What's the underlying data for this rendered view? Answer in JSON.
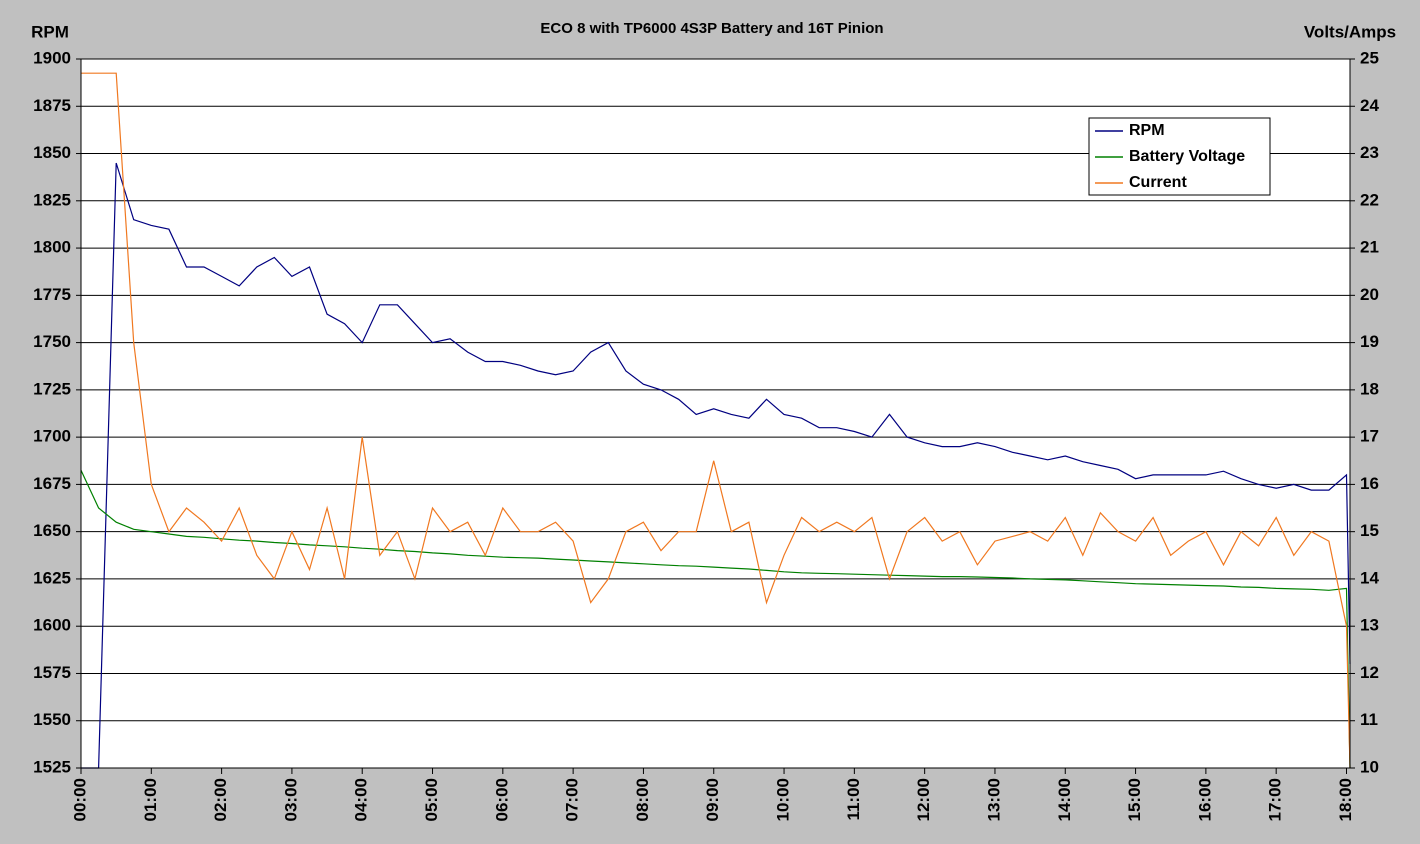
{
  "chart_data": {
    "type": "line",
    "title": "ECO 8 with TP6000 4S3P Battery and 16T Pinion",
    "ylabel": "RPM",
    "y2label": "Volts/Amps",
    "x": [
      0,
      0.25,
      0.5,
      0.75,
      1,
      1.25,
      1.5,
      1.75,
      2,
      2.25,
      2.5,
      2.75,
      3,
      3.25,
      3.5,
      3.75,
      4,
      4.25,
      4.5,
      4.75,
      5,
      5.25,
      5.5,
      5.75,
      6,
      6.25,
      6.5,
      6.75,
      7,
      7.25,
      7.5,
      7.75,
      8,
      8.25,
      8.5,
      8.75,
      9,
      9.25,
      9.5,
      9.75,
      10,
      10.25,
      10.5,
      10.75,
      11,
      11.25,
      11.5,
      11.75,
      12,
      12.25,
      12.5,
      12.75,
      13,
      13.25,
      13.5,
      13.75,
      14,
      14.25,
      14.5,
      14.75,
      15,
      15.25,
      15.5,
      15.75,
      16,
      16.25,
      16.5,
      16.75,
      17,
      17.25,
      17.5,
      17.75,
      18,
      18.05
    ],
    "series": [
      {
        "name": "RPM",
        "color": "#000080",
        "axis": "y",
        "values": [
          1525,
          1525,
          1845,
          1815,
          1812,
          1810,
          1790,
          1790,
          1785,
          1780,
          1790,
          1795,
          1785,
          1790,
          1765,
          1760,
          1750,
          1770,
          1770,
          1760,
          1750,
          1752,
          1745,
          1740,
          1740,
          1738,
          1735,
          1733,
          1735,
          1745,
          1750,
          1735,
          1728,
          1725,
          1720,
          1712,
          1715,
          1712,
          1710,
          1720,
          1712,
          1710,
          1705,
          1705,
          1703,
          1700,
          1712,
          1700,
          1697,
          1695,
          1695,
          1697,
          1695,
          1692,
          1690,
          1688,
          1690,
          1687,
          1685,
          1683,
          1678,
          1680,
          1680,
          1680,
          1680,
          1682,
          1678,
          1675,
          1673,
          1675,
          1672,
          1672,
          1680,
          1580
        ]
      },
      {
        "name": "Battery Voltage",
        "color": "#008000",
        "axis": "y2",
        "values": [
          16.3,
          15.5,
          15.2,
          15.05,
          15.0,
          14.95,
          14.9,
          14.88,
          14.85,
          14.82,
          14.8,
          14.77,
          14.75,
          14.72,
          14.7,
          14.68,
          14.65,
          14.63,
          14.6,
          14.58,
          14.55,
          14.53,
          14.5,
          14.48,
          14.46,
          14.45,
          14.44,
          14.42,
          14.4,
          14.38,
          14.36,
          14.34,
          14.32,
          14.3,
          14.28,
          14.27,
          14.25,
          14.23,
          14.21,
          14.18,
          14.15,
          14.13,
          14.12,
          14.11,
          14.1,
          14.09,
          14.08,
          14.07,
          14.06,
          14.05,
          14.05,
          14.04,
          14.03,
          14.02,
          14.0,
          13.99,
          13.98,
          13.96,
          13.94,
          13.92,
          13.9,
          13.89,
          13.88,
          13.87,
          13.86,
          13.85,
          13.83,
          13.82,
          13.8,
          13.79,
          13.78,
          13.76,
          13.8,
          10
        ]
      },
      {
        "name": "Current",
        "color": "#f07820",
        "axis": "y2",
        "values": [
          24.7,
          24.7,
          24.7,
          19,
          16,
          15,
          15.5,
          15.2,
          14.8,
          15.5,
          14.5,
          14,
          15,
          14.2,
          15.5,
          14,
          17,
          14.5,
          15,
          14,
          15.5,
          15,
          15.2,
          14.5,
          15.5,
          15,
          15,
          15.2,
          14.8,
          13.5,
          14,
          15,
          15.2,
          14.6,
          15,
          15,
          16.5,
          15,
          15.2,
          13.5,
          14.5,
          15.3,
          15,
          15.2,
          15,
          15.3,
          14,
          15,
          15.3,
          14.8,
          15,
          14.3,
          14.8,
          14.9,
          15,
          14.8,
          15.3,
          14.5,
          15.4,
          15,
          14.8,
          15.3,
          14.5,
          14.8,
          15,
          14.3,
          15,
          14.7,
          15.3,
          14.5,
          15,
          14.8,
          13,
          10
        ]
      }
    ],
    "xlim": [
      0,
      18.05
    ],
    "xticks": [
      {
        "value": 0,
        "label": "00:00"
      },
      {
        "value": 1,
        "label": "01:00"
      },
      {
        "value": 2,
        "label": "02:00"
      },
      {
        "value": 3,
        "label": "03:00"
      },
      {
        "value": 4,
        "label": "04:00"
      },
      {
        "value": 5,
        "label": "05:00"
      },
      {
        "value": 6,
        "label": "06:00"
      },
      {
        "value": 7,
        "label": "07:00"
      },
      {
        "value": 8,
        "label": "08:00"
      },
      {
        "value": 9,
        "label": "09:00"
      },
      {
        "value": 10,
        "label": "10:00"
      },
      {
        "value": 11,
        "label": "11:00"
      },
      {
        "value": 12,
        "label": "12:00"
      },
      {
        "value": 13,
        "label": "13:00"
      },
      {
        "value": 14,
        "label": "14:00"
      },
      {
        "value": 15,
        "label": "15:00"
      },
      {
        "value": 16,
        "label": "16:00"
      },
      {
        "value": 17,
        "label": "17:00"
      },
      {
        "value": 18,
        "label": "18:00"
      }
    ],
    "ylim": [
      1525,
      1900
    ],
    "yticks": [
      1525,
      1550,
      1575,
      1600,
      1625,
      1650,
      1675,
      1700,
      1725,
      1750,
      1775,
      1800,
      1825,
      1850,
      1875,
      1900
    ],
    "y2lim": [
      10,
      25
    ],
    "y2ticks": [
      10,
      11,
      12,
      13,
      14,
      15,
      16,
      17,
      18,
      19,
      20,
      21,
      22,
      23,
      24,
      25
    ],
    "grid": true,
    "legend": "upper right"
  }
}
